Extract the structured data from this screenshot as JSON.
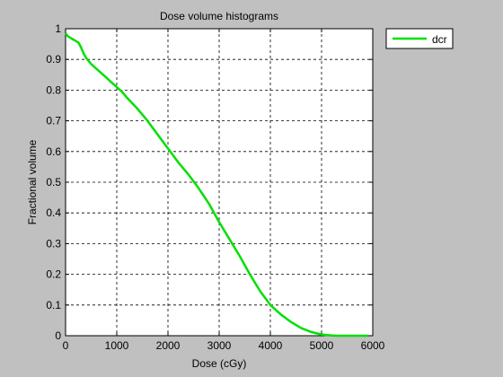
{
  "chart_data": {
    "type": "line",
    "title": "Dose volume histograms",
    "xlabel": "Dose (cGy)",
    "ylabel": "Fractional volume",
    "xlim": [
      0,
      6000
    ],
    "ylim": [
      0,
      1
    ],
    "xticks": [
      0,
      1000,
      2000,
      3000,
      4000,
      5000,
      6000
    ],
    "yticks": [
      0,
      0.1,
      0.2,
      0.3,
      0.4,
      0.5,
      0.6,
      0.7,
      0.8,
      0.9,
      1
    ],
    "xtick_labels": [
      "0",
      "1000",
      "2000",
      "3000",
      "4000",
      "5000",
      "6000"
    ],
    "ytick_labels": [
      "0",
      "0.1",
      "0.2",
      "0.3",
      "0.4",
      "0.5",
      "0.6",
      "0.7",
      "0.8",
      "0.9",
      "1"
    ],
    "grid": true,
    "legend": {
      "placement": "outside-top-right"
    },
    "series": [
      {
        "name": "dcr",
        "color": "#00e000",
        "x": [
          0,
          50,
          100,
          150,
          200,
          250,
          300,
          350,
          400,
          500,
          600,
          700,
          800,
          900,
          1000,
          1100,
          1200,
          1400,
          1600,
          1800,
          2000,
          2200,
          2400,
          2600,
          2800,
          3000,
          3200,
          3400,
          3600,
          3800,
          4000,
          4200,
          4400,
          4600,
          4800,
          5000,
          5100,
          5200,
          5300,
          5500,
          5700,
          5900
        ],
        "y": [
          0.985,
          0.975,
          0.97,
          0.965,
          0.96,
          0.955,
          0.94,
          0.92,
          0.905,
          0.885,
          0.87,
          0.855,
          0.84,
          0.825,
          0.81,
          0.795,
          0.775,
          0.74,
          0.7,
          0.655,
          0.61,
          0.565,
          0.525,
          0.48,
          0.43,
          0.37,
          0.315,
          0.26,
          0.2,
          0.145,
          0.1,
          0.07,
          0.045,
          0.025,
          0.012,
          0.004,
          0.002,
          0.001,
          0.0,
          0.0,
          0.0,
          0.0
        ]
      }
    ]
  }
}
